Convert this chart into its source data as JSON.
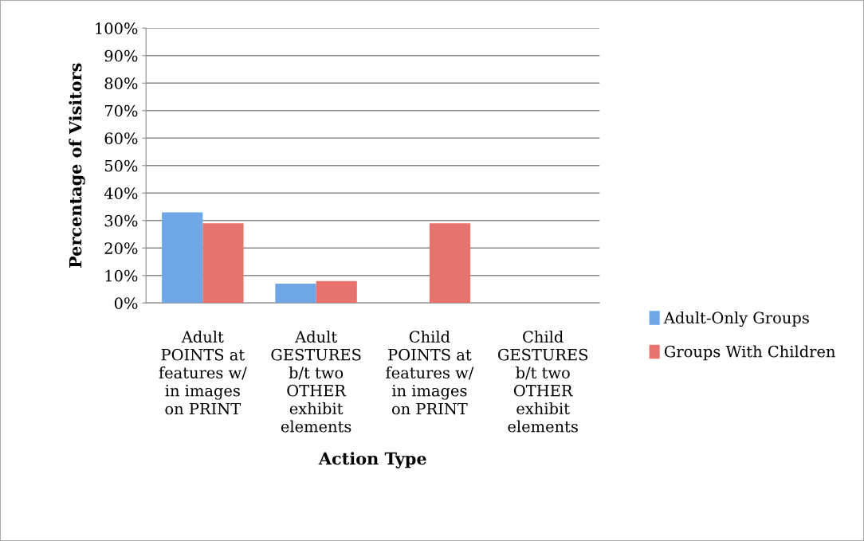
{
  "chart_data": {
    "type": "bar",
    "xlabel": "Action Type",
    "ylabel": "Percentage of Visitors",
    "categories": [
      "Adult\nPOINTS at\nfeatures w/\nin images\non PRINT",
      "Adult\nGESTURES\nb/t two\nOTHER\nexhibit\nelements",
      "Child\nPOINTS at\nfeatures w/\nin images\non PRINT",
      "Child\nGESTURES\nb/t two\nOTHER\nexhibit\nelements"
    ],
    "series": [
      {
        "name": "Adult-Only Groups",
        "color": "#6ea6e6",
        "values": [
          33,
          7,
          0,
          0
        ]
      },
      {
        "name": "Groups With Children",
        "color": "#e8736e",
        "values": [
          29,
          8,
          29,
          0
        ]
      }
    ],
    "ylim": [
      0,
      100
    ],
    "yticks": [
      {
        "value": 0,
        "label": "0%"
      },
      {
        "value": 10,
        "label": "10%"
      },
      {
        "value": 20,
        "label": "20%"
      },
      {
        "value": 30,
        "label": "30%"
      },
      {
        "value": 40,
        "label": "40%"
      },
      {
        "value": 50,
        "label": "50%"
      },
      {
        "value": 60,
        "label": "60%"
      },
      {
        "value": 70,
        "label": "70%"
      },
      {
        "value": 80,
        "label": "80%"
      },
      {
        "value": 90,
        "label": "90%"
      },
      {
        "value": 100,
        "label": "100%"
      }
    ],
    "grid": "y",
    "legend": "right"
  }
}
